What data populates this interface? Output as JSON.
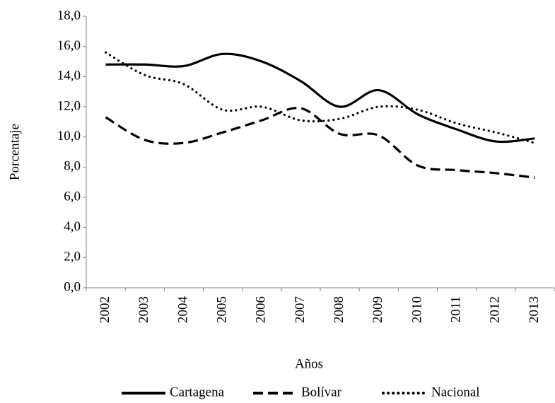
{
  "chart_data": {
    "type": "line",
    "x_label": "Años",
    "y_label": "Porcentaje",
    "categories": [
      "2002",
      "2003",
      "2004",
      "2005",
      "2006",
      "2007",
      "2008",
      "2009",
      "2010",
      "2011",
      "2012",
      "2013"
    ],
    "series": [
      {
        "name": "Cartagena",
        "color": "#000000",
        "line_style": "solid",
        "values": [
          14.8,
          14.8,
          14.7,
          15.5,
          15.0,
          13.7,
          12.0,
          13.1,
          11.5,
          10.5,
          9.7,
          9.9
        ]
      },
      {
        "name": "Bolívar",
        "color": "#000000",
        "line_style": "dashed",
        "values": [
          11.3,
          9.8,
          9.6,
          10.3,
          11.1,
          11.9,
          10.2,
          10.1,
          8.1,
          7.8,
          7.6,
          7.3
        ]
      },
      {
        "name": "Nacional",
        "color": "#000000",
        "line_style": "dotted",
        "values": [
          15.6,
          14.1,
          13.5,
          11.8,
          12.0,
          11.1,
          11.2,
          12.0,
          11.8,
          10.9,
          10.3,
          9.6
        ]
      }
    ],
    "ylim": [
      0,
      18
    ],
    "yticks": [
      {
        "value": 0,
        "label": "0,0"
      },
      {
        "value": 2,
        "label": "2,0"
      },
      {
        "value": 4,
        "label": "4,0"
      },
      {
        "value": 6,
        "label": "6,0"
      },
      {
        "value": 8,
        "label": "8,0"
      },
      {
        "value": 10,
        "label": "10,0"
      },
      {
        "value": 12,
        "label": "12,0"
      },
      {
        "value": 14,
        "label": "14,0"
      },
      {
        "value": 16,
        "label": "16,0"
      },
      {
        "value": 18,
        "label": "18,0"
      }
    ],
    "grid": false,
    "legend": "bottom"
  }
}
